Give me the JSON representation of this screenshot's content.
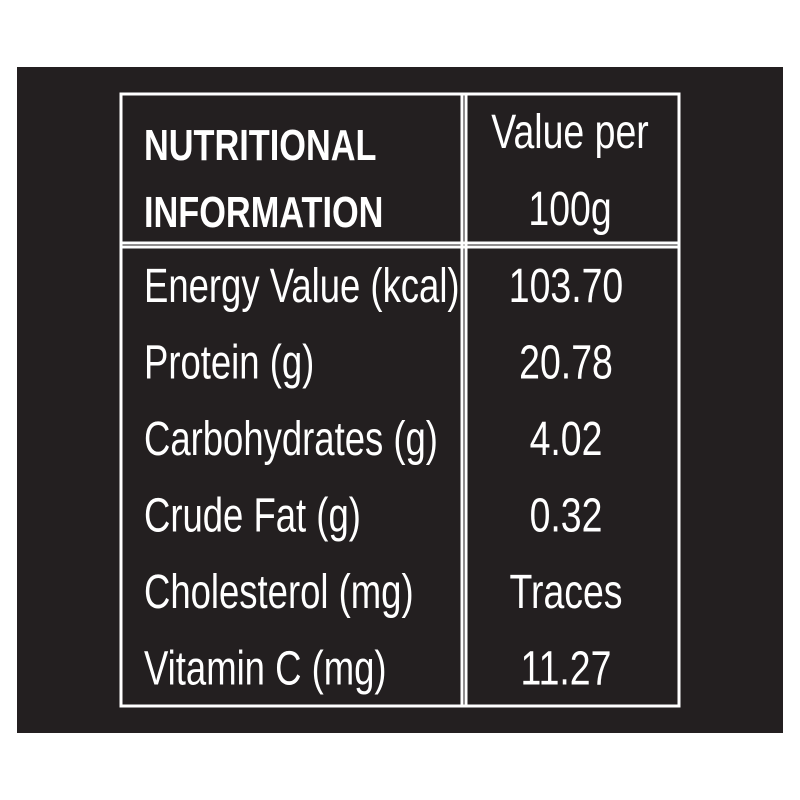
{
  "table": {
    "header": [
      [
        "NUTRITIONAL",
        "INFORMATION"
      ],
      [
        "Value per",
        "100g"
      ]
    ],
    "rows": [
      [
        "Energy Value (kcal)",
        "103.70"
      ],
      [
        "Protein (g)",
        "20.78"
      ],
      [
        "Carbohydrates (g)",
        "4.02"
      ],
      [
        "Crude Fat (g)",
        "0.32"
      ],
      [
        "Cholesterol (mg)",
        "Traces"
      ],
      [
        "Vitamin C (mg)",
        "11.27"
      ]
    ]
  }
}
